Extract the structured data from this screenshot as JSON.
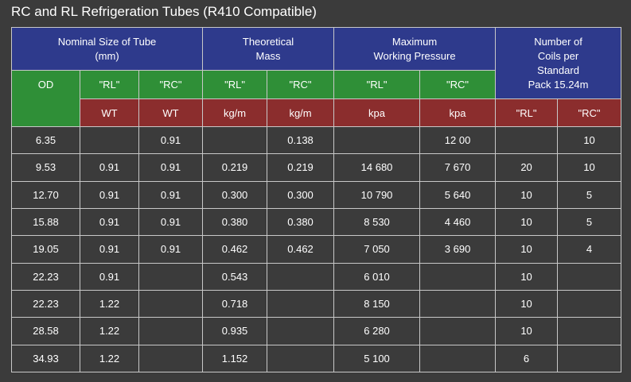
{
  "title": "RC and RL Refrigeration Tubes (R410 Compatible)",
  "header": {
    "group1": [
      "Nominal Size of Tube",
      "(mm)"
    ],
    "group2": [
      "Theoretical",
      "Mass"
    ],
    "group3": [
      "Maximum",
      "Working Pressure"
    ],
    "group4": [
      "Number of",
      "Coils per",
      "Standard",
      "Pack 15.24m"
    ],
    "od": "OD",
    "rl": "\"RL\"",
    "rc": "\"RC\"",
    "wt": "WT",
    "kgm": "kg/m",
    "kpa": "kpa"
  },
  "rows": [
    [
      "6.35",
      "",
      "0.91",
      "",
      "0.138",
      "",
      "12 00",
      "",
      "10"
    ],
    [
      "9.53",
      "0.91",
      "0.91",
      "0.219",
      "0.219",
      "14 680",
      "7 670",
      "20",
      "10"
    ],
    [
      "12.70",
      "0.91",
      "0.91",
      "0.300",
      "0.300",
      "10 790",
      "5 640",
      "10",
      "5"
    ],
    [
      "15.88",
      "0.91",
      "0.91",
      "0.380",
      "0.380",
      "8 530",
      "4 460",
      "10",
      "5"
    ],
    [
      "19.05",
      "0.91",
      "0.91",
      "0.462",
      "0.462",
      "7 050",
      "3 690",
      "10",
      "4"
    ],
    [
      "22.23",
      "0.91",
      "",
      "0.543",
      "",
      "6 010",
      "",
      "10",
      ""
    ],
    [
      "22.23",
      "1.22",
      "",
      "0.718",
      "",
      "8 150",
      "",
      "10",
      ""
    ],
    [
      "28.58",
      "1.22",
      "",
      "0.935",
      "",
      "6 280",
      "",
      "10",
      ""
    ],
    [
      "34.93",
      "1.22",
      "",
      "1.152",
      "",
      "5 100",
      "",
      "6",
      ""
    ]
  ]
}
